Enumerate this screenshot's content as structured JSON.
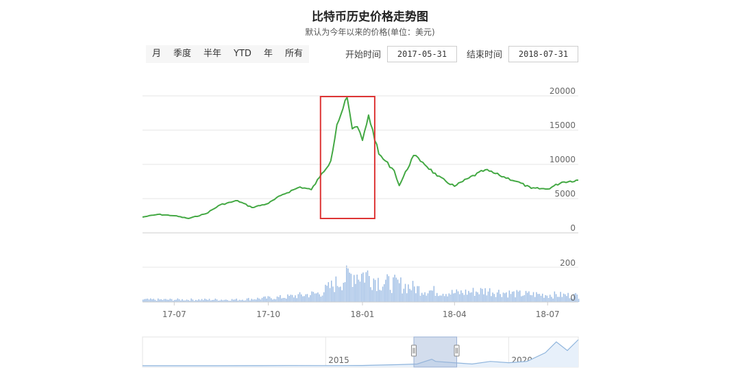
{
  "header": {
    "title": "比特币历史价格走势图",
    "subtitle": "默认为今年以来的价格(单位：美元)"
  },
  "range_buttons": [
    "月",
    "季度",
    "半年",
    "YTD",
    "年",
    "所有"
  ],
  "date_range": {
    "start_label": "开始时间",
    "start_value": "2017-05-31",
    "end_label": "结束时间",
    "end_value": "2018-07-31"
  },
  "colors": {
    "price_line": "#43a843",
    "volume_bar": "#9cbce4",
    "highlight_box": "#d33",
    "navigator_mask": "#9db4d8"
  },
  "chart_data": [
    {
      "type": "line",
      "x_type": "date",
      "x": [
        "2017-05-31",
        "2017-06-15",
        "2017-07-01",
        "2017-07-15",
        "2017-08-01",
        "2017-08-15",
        "2017-09-01",
        "2017-09-15",
        "2017-10-01",
        "2017-10-15",
        "2017-11-01",
        "2017-11-12",
        "2017-11-20",
        "2017-12-01",
        "2017-12-07",
        "2017-12-17",
        "2017-12-22",
        "2017-12-27",
        "2018-01-01",
        "2018-01-07",
        "2018-01-17",
        "2018-02-01",
        "2018-02-06",
        "2018-02-20",
        "2018-03-01",
        "2018-03-15",
        "2018-04-01",
        "2018-04-15",
        "2018-05-01",
        "2018-05-15",
        "2018-06-01",
        "2018-06-15",
        "2018-07-01",
        "2018-07-15",
        "2018-07-31"
      ],
      "values": [
        2300,
        2700,
        2500,
        2100,
        2800,
        4100,
        4700,
        3700,
        4300,
        5600,
        6700,
        6300,
        8100,
        10500,
        15800,
        19800,
        15200,
        15500,
        13500,
        17200,
        11500,
        9100,
        6900,
        11300,
        10300,
        8300,
        6800,
        8000,
        9200,
        8400,
        7500,
        6500,
        6400,
        7400,
        7700
      ],
      "yticks": [
        0,
        5000,
        10000,
        15000,
        20000
      ],
      "ylim": [
        0,
        21000
      ],
      "xticks": [
        {
          "date": "2017-07-01",
          "label": "17-07"
        },
        {
          "date": "2017-10-01",
          "label": "17-10"
        },
        {
          "date": "2018-01-01",
          "label": "18-01"
        },
        {
          "date": "2018-04-01",
          "label": "18-04"
        },
        {
          "date": "2018-07-01",
          "label": "18-07"
        }
      ],
      "highlight": {
        "start": "2017-11-21",
        "end": "2018-01-13"
      },
      "grid": true
    },
    {
      "type": "bar",
      "x_type": "date",
      "x": [
        "2017-05-31",
        "2017-09-01",
        "2017-10-15",
        "2017-11-20",
        "2017-12-10",
        "2017-12-22",
        "2018-01-05",
        "2018-01-20",
        "2018-02-05",
        "2018-03-01",
        "2018-04-01",
        "2018-05-01",
        "2018-06-01",
        "2018-07-01",
        "2018-07-31"
      ],
      "values": [
        15,
        15,
        30,
        55,
        130,
        175,
        170,
        120,
        110,
        75,
        55,
        70,
        50,
        45,
        40
      ],
      "yticks": [
        0,
        200
      ],
      "ylim": [
        0,
        240
      ]
    },
    {
      "type": "area",
      "role": "navigator",
      "x_type": "year",
      "x": [
        2010,
        2012,
        2013,
        2014,
        2015,
        2016,
        2017,
        2017.5,
        2017.9,
        2018,
        2018.5,
        2019,
        2019.5,
        2020,
        2020.5,
        2021,
        2021.3,
        2021.6,
        2021.9
      ],
      "values": [
        0,
        50,
        200,
        500,
        300,
        600,
        2500,
        4000,
        15000,
        10000,
        7000,
        4000,
        10000,
        7000,
        10000,
        30000,
        55000,
        35000,
        60000
      ],
      "xticks": [
        {
          "x": 2015,
          "label": "2015"
        },
        {
          "x": 2020,
          "label": "2020"
        }
      ],
      "selection": {
        "start": 2017.41,
        "end": 2018.58
      }
    }
  ]
}
